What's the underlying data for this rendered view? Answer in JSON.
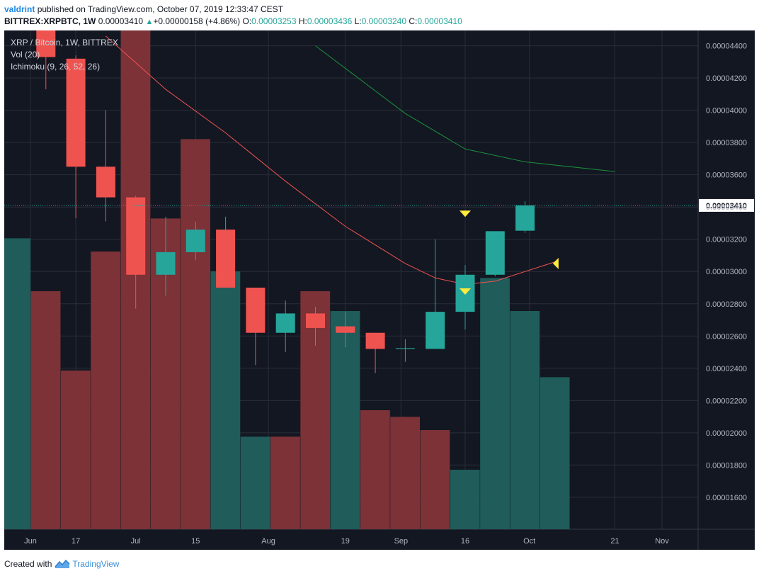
{
  "header": {
    "user": "valdrint",
    "published": "published on TradingView.com, October 07, 2019 12:33:47 CEST",
    "symbol": "BITTREX:XRPBTC, 1W",
    "price": "0.00003410",
    "change": "+0.00000158 (+4.86%)",
    "o_label": "O:",
    "o_value": "0.00003253",
    "h_label": "H:",
    "h_value": "0.00003436",
    "l_label": "L:",
    "l_value": "0.00003240",
    "c_label": "C:",
    "c_value": "0.00003410"
  },
  "legend": {
    "title": "XRP / Bitcoin, 1W, BITTREX",
    "volume": "Vol (20)",
    "ichimoku": "Ichimoku (9, 26, 52, 26)"
  },
  "footer": {
    "created_with": "Created with",
    "brand": "TradingView"
  },
  "chart_data": {
    "type": "candlestick",
    "timeframe": "1W",
    "colors": {
      "background": "#131722",
      "grid": "#2a2e39",
      "up": "#26a69a",
      "down": "#ef5350",
      "vol_up": "#1f5c5a",
      "vol_down": "#7c3237",
      "base_line": "#ef5350",
      "conversion_line": "#1b8f3a",
      "last_price": "#26a69a",
      "marker": "#ffeb3b",
      "axis_text": "#b2b5be",
      "price_axis_text": "#131722",
      "price_axis_bg": "#ffffff"
    },
    "y_axis": {
      "ticks": [
        "0.00004400",
        "0.00004200",
        "0.00004000",
        "0.00003800",
        "0.00003600",
        "0.00003400",
        "0.00003200",
        "0.00003000",
        "0.00002800",
        "0.00002600",
        "0.00002400",
        "0.00002200",
        "0.00002000",
        "0.00001800",
        "0.00001600"
      ],
      "last_price_label": "0.00003410",
      "last_price": 3.41e-05
    },
    "x_axis": {
      "labels": [
        "Jun",
        "17",
        "Jul",
        "15",
        "Aug",
        "19",
        "Sep",
        "16",
        "Oct",
        "21",
        "Nov"
      ]
    },
    "candles": [
      {
        "date": "2019-06-10",
        "o": 4630,
        "h": 4650,
        "l": 4130,
        "c": 4330
      },
      {
        "date": "2019-06-17",
        "o": 4320,
        "h": 4340,
        "l": 3330,
        "c": 3650
      },
      {
        "date": "2019-06-24",
        "o": 3650,
        "h": 4000,
        "l": 3310,
        "c": 3460
      },
      {
        "date": "2019-07-01",
        "o": 3460,
        "h": 3470,
        "l": 2770,
        "c": 2980
      },
      {
        "date": "2019-07-08",
        "o": 2980,
        "h": 3340,
        "l": 2850,
        "c": 3120
      },
      {
        "date": "2019-07-15",
        "o": 3120,
        "h": 3310,
        "l": 3070,
        "c": 3260
      },
      {
        "date": "2019-07-22",
        "o": 3260,
        "h": 3340,
        "l": 2900,
        "c": 2900
      },
      {
        "date": "2019-07-29",
        "o": 2900,
        "h": 2900,
        "l": 2420,
        "c": 2620
      },
      {
        "date": "2019-08-05",
        "o": 2620,
        "h": 2820,
        "l": 2500,
        "c": 2740
      },
      {
        "date": "2019-08-12",
        "o": 2740,
        "h": 2780,
        "l": 2540,
        "c": 2650
      },
      {
        "date": "2019-08-19",
        "o": 2660,
        "h": 2750,
        "l": 2530,
        "c": 2620
      },
      {
        "date": "2019-08-26",
        "o": 2620,
        "h": 2620,
        "l": 2370,
        "c": 2520
      },
      {
        "date": "2019-09-02",
        "o": 2520,
        "h": 2580,
        "l": 2440,
        "c": 2525
      },
      {
        "date": "2019-09-09",
        "o": 2520,
        "h": 3200,
        "l": 2520,
        "c": 2750
      },
      {
        "date": "2019-09-16",
        "o": 2750,
        "h": 3040,
        "l": 2640,
        "c": 2980
      },
      {
        "date": "2019-09-23",
        "o": 2980,
        "h": 3250,
        "l": 2970,
        "c": 3250
      },
      {
        "date": "2019-09-30",
        "o": 3253,
        "h": 3436,
        "l": 3240,
        "c": 3410
      }
    ],
    "volume": [
      {
        "date": "2019-06-03",
        "v": 1860,
        "dir": "up"
      },
      {
        "date": "2019-06-10",
        "v": 1780,
        "dir": "down"
      },
      {
        "date": "2019-06-17",
        "v": 1660,
        "dir": "down"
      },
      {
        "date": "2019-06-24",
        "v": 1840,
        "dir": "down"
      },
      {
        "date": "2019-07-01",
        "v": 2180,
        "dir": "down"
      },
      {
        "date": "2019-07-08",
        "v": 1890,
        "dir": "down"
      },
      {
        "date": "2019-07-15",
        "v": 2010,
        "dir": "down"
      },
      {
        "date": "2019-07-22",
        "v": 1810,
        "dir": "up"
      },
      {
        "date": "2019-07-29",
        "v": 1560,
        "dir": "up"
      },
      {
        "date": "2019-08-05",
        "v": 1560,
        "dir": "down"
      },
      {
        "date": "2019-08-12",
        "v": 1780,
        "dir": "down"
      },
      {
        "date": "2019-08-19",
        "v": 1750,
        "dir": "up"
      },
      {
        "date": "2019-08-26",
        "v": 1600,
        "dir": "down"
      },
      {
        "date": "2019-09-02",
        "v": 1590,
        "dir": "down"
      },
      {
        "date": "2019-09-09",
        "v": 1570,
        "dir": "down"
      },
      {
        "date": "2019-09-16",
        "v": 1510,
        "dir": "up"
      },
      {
        "date": "2019-09-23",
        "v": 1800,
        "dir": "up"
      },
      {
        "date": "2019-09-30",
        "v": 1750,
        "dir": "up"
      },
      {
        "date": "2019-10-07",
        "v": 1650,
        "dir": "up"
      },
      {
        "date": "2019-10-14",
        "v": 1420,
        "dir": "up"
      }
    ],
    "ichimoku_base_line": [
      {
        "date": "2019-06-24",
        "v": 4460
      },
      {
        "date": "2019-07-08",
        "v": 4130
      },
      {
        "date": "2019-07-22",
        "v": 3860
      },
      {
        "date": "2019-08-05",
        "v": 3560
      },
      {
        "date": "2019-08-19",
        "v": 3280
      },
      {
        "date": "2019-09-02",
        "v": 3050
      },
      {
        "date": "2019-09-09",
        "v": 2960
      },
      {
        "date": "2019-09-16",
        "v": 2920
      },
      {
        "date": "2019-09-23",
        "v": 2940
      },
      {
        "date": "2019-10-07",
        "v": 3060
      }
    ],
    "ichimoku_conversion_line": [
      {
        "date": "2019-08-12",
        "v": 4400
      },
      {
        "date": "2019-09-02",
        "v": 3980
      },
      {
        "date": "2019-09-16",
        "v": 3760
      },
      {
        "date": "2019-09-30",
        "v": 3680
      },
      {
        "date": "2019-10-21",
        "v": 3620
      }
    ],
    "markers": [
      {
        "date": "2019-09-16",
        "v": 3360,
        "shape": "triangle-down",
        "pane": "price"
      },
      {
        "date": "2019-09-16",
        "v": 1780,
        "shape": "triangle-down",
        "pane": "volume"
      },
      {
        "date": "2019-10-07",
        "v": 3050,
        "shape": "triangle-left",
        "pane": "price"
      }
    ]
  }
}
